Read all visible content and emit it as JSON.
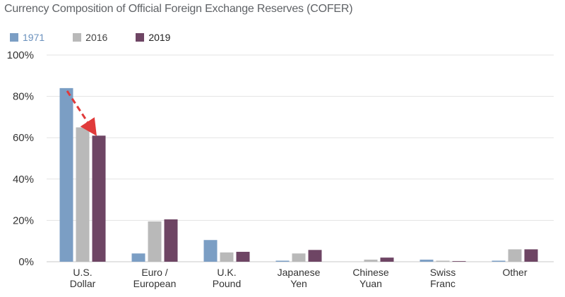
{
  "chart_data": {
    "type": "bar",
    "title": "Currency Composition of Official Foreign Exchange Reserves (COFER)",
    "categories": [
      [
        "U.S.",
        "Dollar"
      ],
      [
        "Euro /",
        "European"
      ],
      [
        "U.K.",
        "Pound"
      ],
      [
        "Japanese",
        "Yen"
      ],
      [
        "Chinese",
        "Yuan"
      ],
      [
        "Swiss",
        "Franc"
      ],
      [
        "Other"
      ]
    ],
    "series": [
      {
        "name": "1971",
        "color": "#7b9ec4",
        "label_color": "#6a90bd",
        "values": [
          84,
          4,
          10.5,
          0.5,
          0,
          1,
          0.5
        ]
      },
      {
        "name": "2016",
        "color": "#b9b9b9",
        "label_color": "#444444",
        "values": [
          65,
          19.5,
          4.5,
          4,
          1,
          0.5,
          6
        ]
      },
      {
        "name": "2019",
        "color": "#6e4564",
        "label_color": "#222222",
        "values": [
          61,
          20.5,
          4.8,
          5.7,
          2,
          0.3,
          6
        ]
      }
    ],
    "y_ticks": [
      "0%",
      "20%",
      "40%",
      "60%",
      "80%",
      "100%"
    ],
    "ylim": [
      0,
      100
    ],
    "grid": true,
    "legend_position": "top-left",
    "annotation": {
      "type": "arrow",
      "color": "#e03a3a",
      "from_value": 84,
      "to_value": 61
    }
  }
}
